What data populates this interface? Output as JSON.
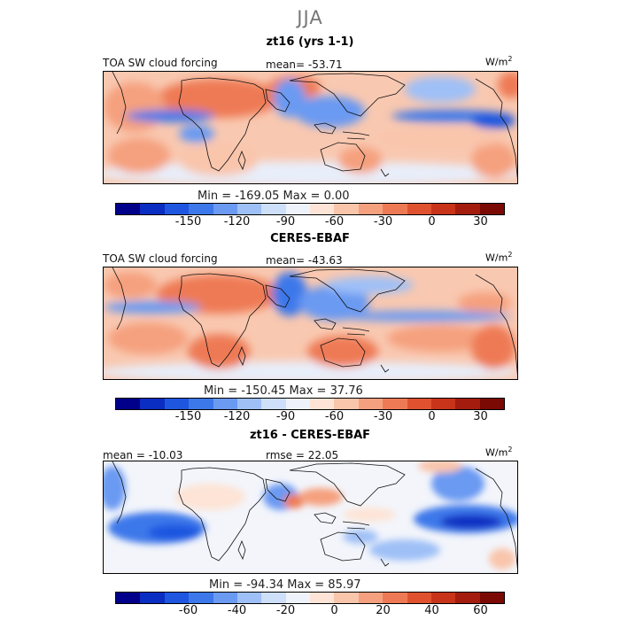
{
  "header": {
    "season": "JJA"
  },
  "panels": [
    {
      "title": "zt16 (yrs 1-1)",
      "left_label": "TOA SW cloud forcing",
      "stat_label": "mean= -53.71",
      "units_base": "W/m",
      "units_exp": "2",
      "minmax": "Min = -169.05 Max =    0.00",
      "colorbar": {
        "colors": [
          "#00008b",
          "#0a2dc2",
          "#1e56e0",
          "#3c78ea",
          "#6b9af2",
          "#9fc0f7",
          "#cddff9",
          "#eef3fb",
          "#fde4d6",
          "#f9c5ab",
          "#f5a07e",
          "#ee7a55",
          "#e0522f",
          "#c73419",
          "#a31c0d",
          "#7a0a03"
        ],
        "tick_labels": [
          "-150",
          "-120",
          "-90",
          "-60",
          "-30",
          "0",
          "30"
        ]
      }
    },
    {
      "title": "CERES-EBAF",
      "left_label": "TOA SW cloud forcing",
      "stat_label": "mean= -43.63",
      "units_base": "W/m",
      "units_exp": "2",
      "minmax": "Min = -150.45 Max =  37.76",
      "colorbar": {
        "colors": [
          "#00008b",
          "#0a2dc2",
          "#1e56e0",
          "#3c78ea",
          "#6b9af2",
          "#9fc0f7",
          "#cddff9",
          "#eef3fb",
          "#fde4d6",
          "#f9c5ab",
          "#f5a07e",
          "#ee7a55",
          "#e0522f",
          "#c73419",
          "#a31c0d",
          "#7a0a03"
        ],
        "tick_labels": [
          "-150",
          "-120",
          "-90",
          "-60",
          "-30",
          "0",
          "30"
        ]
      }
    },
    {
      "title": "zt16 - CERES-EBAF",
      "left_label": "mean = -10.03",
      "stat_label": "rmse =  22.05",
      "units_base": "W/m",
      "units_exp": "2",
      "minmax": "Min = -94.34 Max =  85.97",
      "colorbar": {
        "colors": [
          "#00008b",
          "#0a2dc2",
          "#1e56e0",
          "#3c78ea",
          "#6b9af2",
          "#9fc0f7",
          "#cddff9",
          "#eef3fb",
          "#fde4d6",
          "#f9c5ab",
          "#f5a07e",
          "#ee7a55",
          "#e0522f",
          "#c73419",
          "#a31c0d",
          "#7a0a03"
        ],
        "tick_labels": [
          "-60",
          "-40",
          "-20",
          "0",
          "20",
          "40",
          "60"
        ]
      }
    }
  ]
}
